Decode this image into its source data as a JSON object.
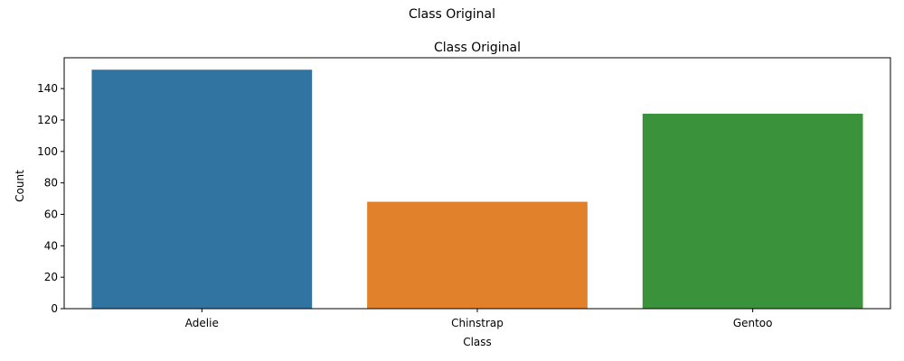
{
  "figure": {
    "suptitle": "Class Original"
  },
  "chart_data": {
    "type": "bar",
    "title": "Class Original",
    "xlabel": "Class",
    "ylabel": "Count",
    "categories": [
      "Adelie",
      "Chinstrap",
      "Gentoo"
    ],
    "values": [
      152,
      68,
      124
    ],
    "colors": [
      "#3274a1",
      "#e1812c",
      "#3a923a"
    ],
    "ylim": [
      0,
      159.6
    ],
    "yticks": [
      0,
      20,
      40,
      60,
      80,
      100,
      120,
      140
    ],
    "grid": false,
    "legend": "none"
  }
}
